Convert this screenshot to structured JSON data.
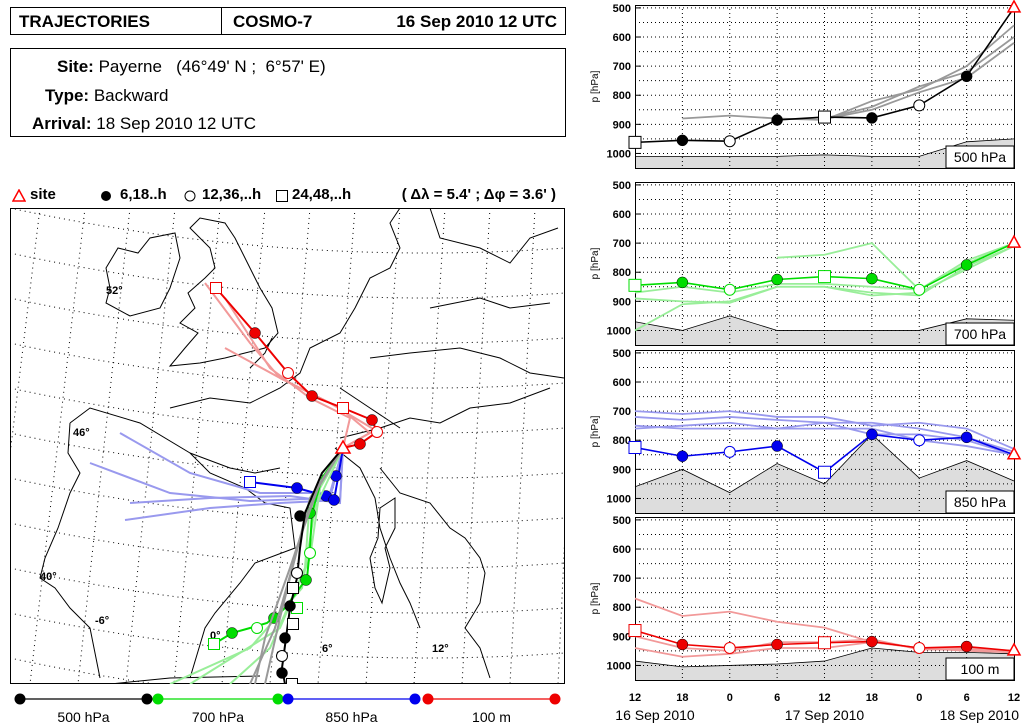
{
  "header": {
    "title": "TRAJECTORIES",
    "model": "COSMO-7",
    "init_time": "16 Sep 2010 12 UTC"
  },
  "info": {
    "site_label": "Site:",
    "site_value": "Payerne   (46°49' N ;  6°57' E)",
    "type_label": "Type:",
    "type_value": "Backward",
    "arrival_label": "Arrival:",
    "arrival_value": "18 Sep 2010 12 UTC"
  },
  "legend_top": {
    "site": "site",
    "filled": "6,18..h",
    "open": "12,36,..h",
    "square": "24,48,..h",
    "resolution": "( Δλ = 5.4' ; Δφ = 3.6' )"
  },
  "colors": {
    "l500": "#000000",
    "l500_ens": "#999999",
    "l700": "#00dd00",
    "l700_ens": "#99ee99",
    "l850": "#0000ee",
    "l850_ens": "#9999ee",
    "l100": "#ee0000",
    "l100_ens": "#f29999",
    "topo": "#dddddd",
    "site": "#ff0000"
  },
  "legend_bottom": [
    {
      "label": "500 hPa",
      "color": "#000000"
    },
    {
      "label": "700 hPa",
      "color": "#00dd00"
    },
    {
      "label": "850 hPa",
      "color": "#0000ee"
    },
    {
      "label": "100 m",
      "color": "#ee0000"
    }
  ],
  "map": {
    "lat_labels": [
      "52°",
      "46°",
      "40°"
    ],
    "lon_labels": [
      "-6°",
      "0°",
      "6°",
      "12°"
    ]
  },
  "chart_data": [
    {
      "type": "line",
      "title": "500 hPa",
      "ylabel": "p [hPa]",
      "ylim": [
        1050,
        490
      ],
      "yticks": [
        500,
        600,
        700,
        800,
        900,
        1000
      ],
      "x_hours": [
        -48,
        -42,
        -36,
        -30,
        -24,
        -18,
        -12,
        -6,
        0
      ],
      "xtick_labels": [
        "12",
        "18",
        "0",
        "6",
        "12",
        "18",
        "0",
        "6",
        "12"
      ],
      "date_labels": [
        "16 Sep 2010",
        "17 Sep 2010",
        "18 Sep 2010"
      ],
      "main": [
        962,
        955,
        958,
        885,
        875,
        878,
        835,
        735,
        500
      ],
      "ensemble": [
        [
          null,
          880,
          870,
          880,
          885,
          820,
          780,
          700,
          560
        ],
        [
          null,
          null,
          null,
          null,
          880,
          840,
          770,
          720,
          600
        ],
        [
          null,
          null,
          null,
          null,
          882,
          850,
          790,
          740,
          620
        ]
      ],
      "topo": [
        1010,
        1010,
        1010,
        1010,
        1005,
        1010,
        1010,
        960,
        950
      ],
      "markers": [
        "square",
        "filled",
        "open",
        "filled",
        "square",
        "filled",
        "open",
        "filled",
        "site"
      ]
    },
    {
      "type": "line",
      "title": "700 hPa",
      "ylabel": "p [hPa]",
      "ylim": [
        1050,
        490
      ],
      "yticks": [
        500,
        600,
        700,
        800,
        900,
        1000
      ],
      "x_hours": [
        -48,
        -42,
        -36,
        -30,
        -24,
        -18,
        -12,
        -6,
        0
      ],
      "xtick_labels": [
        "12",
        "18",
        "0",
        "6",
        "12",
        "18",
        "0",
        "6",
        "12"
      ],
      "date_labels": [
        "16 Sep 2010",
        "17 Sep 2010",
        "18 Sep 2010"
      ],
      "main": [
        845,
        835,
        860,
        825,
        815,
        822,
        860,
        775,
        700
      ],
      "ensemble": [
        [
          870,
          850,
          870,
          840,
          840,
          850,
          860,
          770,
          700
        ],
        [
          1000,
          910,
          900,
          850,
          850,
          870,
          880,
          780,
          710
        ],
        [
          null,
          null,
          null,
          750,
          740,
          700,
          860,
          760,
          700
        ],
        [
          890,
          900,
          905,
          850,
          850,
          880,
          870,
          790,
          710
        ]
      ],
      "topo": [
        970,
        1000,
        950,
        1000,
        1000,
        1000,
        1000,
        960,
        965
      ],
      "markers": [
        "square",
        "filled",
        "open",
        "filled",
        "square",
        "filled",
        "open",
        "filled",
        "site"
      ]
    },
    {
      "type": "line",
      "title": "850 hPa",
      "ylabel": "p [hPa]",
      "ylim": [
        1050,
        490
      ],
      "yticks": [
        500,
        600,
        700,
        800,
        900,
        1000
      ],
      "x_hours": [
        -48,
        -42,
        -36,
        -30,
        -24,
        -18,
        -12,
        -6,
        0
      ],
      "xtick_labels": [
        "12",
        "18",
        "0",
        "6",
        "12",
        "18",
        "0",
        "6",
        "12"
      ],
      "date_labels": [
        "16 Sep 2010",
        "17 Sep 2010",
        "18 Sep 2010"
      ],
      "main": [
        825,
        855,
        840,
        820,
        910,
        780,
        800,
        790,
        850
      ],
      "ensemble": [
        [
          700,
          710,
          700,
          720,
          720,
          750,
          740,
          760,
          830
        ],
        [
          720,
          730,
          720,
          730,
          740,
          740,
          760,
          790,
          840
        ],
        [
          750,
          760,
          760,
          760,
          740,
          780,
          780,
          800,
          850
        ],
        [
          760,
          750,
          740,
          760,
          760,
          760,
          800,
          820,
          850
        ]
      ],
      "topo": [
        960,
        900,
        980,
        880,
        950,
        780,
        930,
        870,
        940
      ],
      "markers": [
        "square",
        "filled",
        "open",
        "filled",
        "square",
        "filled",
        "open",
        "filled",
        "site"
      ]
    },
    {
      "type": "line",
      "title": "100 m",
      "ylabel": "p [hPa]",
      "ylim": [
        1050,
        490
      ],
      "yticks": [
        500,
        600,
        700,
        800,
        900,
        1000
      ],
      "x_hours": [
        -48,
        -42,
        -36,
        -30,
        -24,
        -18,
        -12,
        -6,
        0
      ],
      "xtick_labels": [
        "12",
        "18",
        "0",
        "6",
        "12",
        "18",
        "0",
        "6",
        "12"
      ],
      "date_labels": [
        "16 Sep 2010",
        "17 Sep 2010",
        "18 Sep 2010"
      ],
      "main": [
        880,
        928,
        940,
        928,
        922,
        918,
        940,
        935,
        950
      ],
      "ensemble": [
        [
          770,
          830,
          815,
          850,
          870,
          920,
          940,
          940,
          950
        ],
        [
          900,
          940,
          950,
          920,
          920,
          910,
          945,
          945,
          950
        ],
        [
          940,
          970,
          960,
          940,
          940,
          920,
          940,
          950,
          955
        ]
      ],
      "topo": [
        985,
        1005,
        1000,
        995,
        985,
        940,
        955,
        955,
        960
      ],
      "markers": [
        "square",
        "filled",
        "open",
        "filled",
        "square",
        "filled",
        "open",
        "filled",
        "site"
      ]
    }
  ]
}
